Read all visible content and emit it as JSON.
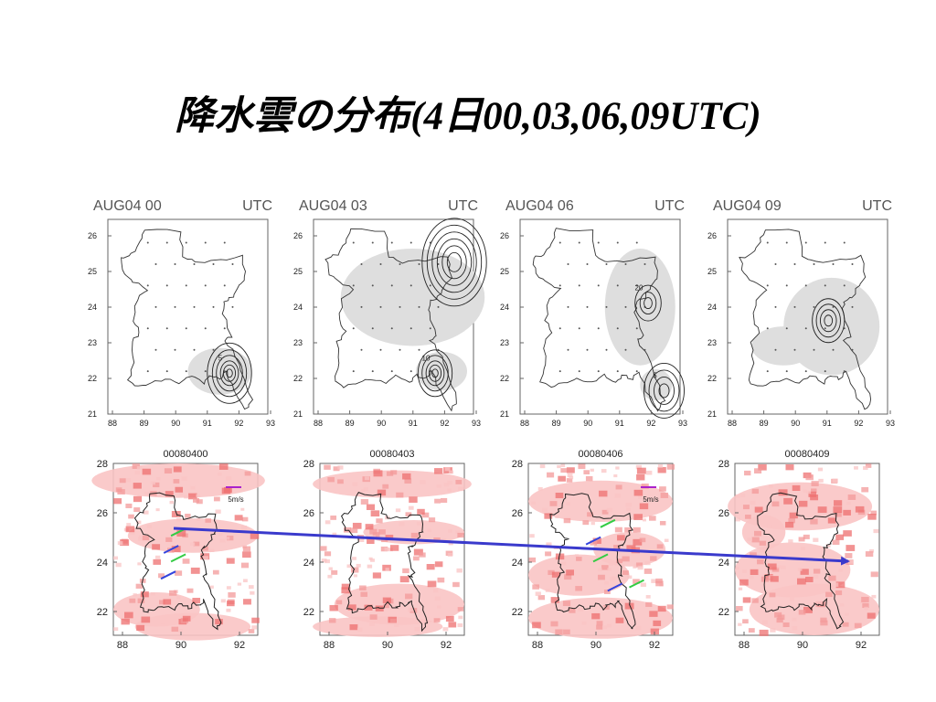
{
  "slide": {
    "title": "降水雲の分布(4日00,03,06,09UTC)"
  },
  "colors": {
    "precip_light": "#f9c4c4",
    "precip_mid": "#f39a9a",
    "precip_strong": "#ee6f6f",
    "arrow": "#3a3acc",
    "wind_green": "#33cc44",
    "wind_blue": "#3344dd",
    "shade": "#dedede"
  },
  "top_panels": [
    {
      "title_left": "AUG04 00",
      "title_right": "UTC",
      "x_ticks": [
        "88",
        "89",
        "90",
        "91",
        "92",
        "93"
      ],
      "y_ticks": [
        "26",
        "25",
        "24",
        "23",
        "22",
        "21"
      ],
      "contour_labels": [
        "5"
      ]
    },
    {
      "title_left": "AUG04 03",
      "title_right": "UTC",
      "x_ticks": [
        "88",
        "89",
        "90",
        "91",
        "92",
        "93"
      ],
      "y_ticks": [
        "26",
        "25",
        "24",
        "23",
        "22",
        "21"
      ],
      "contour_labels": [
        "10"
      ]
    },
    {
      "title_left": "AUG04 06",
      "title_right": "UTC",
      "x_ticks": [
        "88",
        "89",
        "90",
        "91",
        "92",
        "93"
      ],
      "y_ticks": [
        "26",
        "25",
        "24",
        "23",
        "22",
        "21"
      ],
      "contour_labels": [
        "20",
        "5"
      ]
    },
    {
      "title_left": "AUG04 09",
      "title_right": "UTC",
      "x_ticks": [
        "88",
        "89",
        "90",
        "91",
        "92",
        "93"
      ],
      "y_ticks": [
        "26",
        "25",
        "24",
        "23",
        "22",
        "21"
      ],
      "contour_labels": []
    }
  ],
  "bottom_panels": [
    {
      "title": "00080400",
      "x_ticks": [
        "88",
        "90",
        "92"
      ],
      "y_ticks": [
        "28",
        "26",
        "24",
        "22"
      ],
      "legend": "5m/s"
    },
    {
      "title": "00080403",
      "x_ticks": [
        "88",
        "90",
        "92"
      ],
      "y_ticks": [
        "28",
        "26",
        "24",
        "22"
      ],
      "legend": ""
    },
    {
      "title": "00080406",
      "x_ticks": [
        "88",
        "90",
        "92"
      ],
      "y_ticks": [
        "28",
        "26",
        "24",
        "22"
      ],
      "legend": "5m/s"
    },
    {
      "title": "00080409",
      "x_ticks": [
        "88",
        "90",
        "92"
      ],
      "y_ticks": [
        "28",
        "26",
        "24",
        "22"
      ],
      "legend": ""
    }
  ]
}
